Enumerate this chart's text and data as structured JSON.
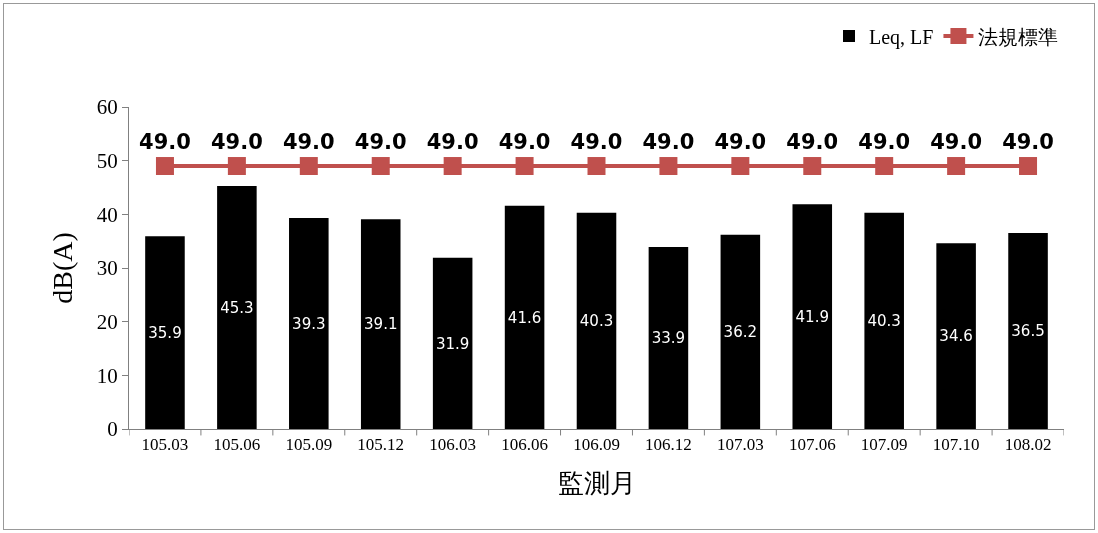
{
  "chart_data": {
    "type": "bar",
    "xlabel": "監測月",
    "ylabel": "dB(A)",
    "categories": [
      "105.03",
      "105.06",
      "105.09",
      "105.12",
      "106.03",
      "106.06",
      "106.09",
      "106.12",
      "107.03",
      "107.06",
      "107.09",
      "107.10",
      "108.02"
    ],
    "series": [
      {
        "name": "Leq, LF",
        "color": "#000000",
        "values": [
          35.9,
          45.3,
          39.3,
          39.1,
          31.9,
          41.6,
          40.3,
          33.9,
          36.2,
          41.9,
          40.3,
          34.6,
          36.5
        ],
        "value_labels": [
          "35.9",
          "45.3",
          "39.3",
          "39.1",
          "31.9",
          "41.6",
          "40.3",
          "33.9",
          "36.2",
          "41.9",
          "40.3",
          "34.6",
          "36.5"
        ]
      },
      {
        "name": "法規標準",
        "type": "line",
        "color": "#c0504d",
        "marker": "square",
        "values": [
          49,
          49,
          49,
          49,
          49,
          49,
          49,
          49,
          49,
          49,
          49,
          49,
          49
        ],
        "value_labels": [
          "49.0",
          "49.0",
          "49.0",
          "49.0",
          "49.0",
          "49.0",
          "49.0",
          "49.0",
          "49.0",
          "49.0",
          "49.0",
          "49.0",
          "49.0"
        ]
      }
    ],
    "ylim": [
      0,
      60
    ],
    "yticks": [
      0,
      10,
      20,
      30,
      40,
      50,
      60
    ],
    "grid": false,
    "legend": "top right"
  }
}
